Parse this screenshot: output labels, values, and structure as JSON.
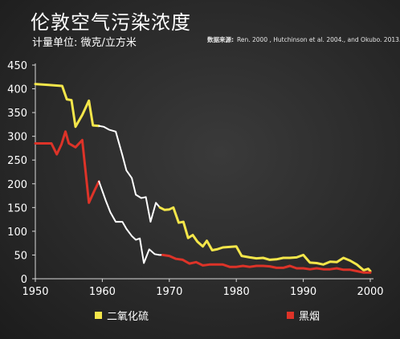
{
  "header": {
    "title": "伦敦空气污染浓度",
    "subtitle": "计量单位: 微克/立方米",
    "source_label": "数据来源:",
    "source_text": "Ren. 2000 , Hutchinson et al. 2004., and Okubo. 2013."
  },
  "colors": {
    "so2": "#f4e64a",
    "smoke": "#dd3328",
    "smoke_highlight": "#ffffff",
    "axis": "#d9d9d9",
    "tick_label": "#ffffff"
  },
  "legend": {
    "so2_label": "二氧化硫",
    "smoke_label": "黑烟"
  },
  "chart_data": {
    "type": "line",
    "title": "伦敦空气污染浓度",
    "ylabel": "计量单位: 微克/立方米",
    "xlabel": "",
    "xlim": [
      1950,
      2000
    ],
    "ylim": [
      0,
      450
    ],
    "x_ticks": [
      1950,
      1960,
      1970,
      1980,
      1990,
      2000
    ],
    "y_ticks": [
      0,
      50,
      100,
      150,
      200,
      250,
      300,
      350,
      400,
      450
    ],
    "grid": false,
    "legend_position": "bottom",
    "series": [
      {
        "name": "二氧化硫",
        "color": "#f4e64a",
        "highlight_range": [
          1959.5,
          1969
        ],
        "highlight_color": "#ffffff",
        "points": [
          [
            1950,
            410
          ],
          [
            1952,
            408
          ],
          [
            1953,
            407
          ],
          [
            1954,
            406
          ],
          [
            1954.7,
            378
          ],
          [
            1955.4,
            376
          ],
          [
            1956,
            320
          ],
          [
            1957,
            345
          ],
          [
            1958,
            375
          ],
          [
            1958.6,
            323
          ],
          [
            1959.5,
            322
          ],
          [
            1960.2,
            320
          ],
          [
            1961,
            314
          ],
          [
            1962,
            310
          ],
          [
            1963,
            260
          ],
          [
            1963.6,
            228
          ],
          [
            1964.4,
            212
          ],
          [
            1965,
            177
          ],
          [
            1965.8,
            170
          ],
          [
            1966.5,
            172
          ],
          [
            1967.2,
            120
          ],
          [
            1968,
            160
          ],
          [
            1968.6,
            150
          ],
          [
            1969.3,
            145
          ],
          [
            1970,
            146
          ],
          [
            1970.6,
            150
          ],
          [
            1971.4,
            118
          ],
          [
            1972.1,
            120
          ],
          [
            1972.8,
            86
          ],
          [
            1973.5,
            92
          ],
          [
            1974.2,
            78
          ],
          [
            1975,
            68
          ],
          [
            1975.6,
            80
          ],
          [
            1976.4,
            60
          ],
          [
            1977.1,
            62
          ],
          [
            1978,
            66
          ],
          [
            1979,
            67
          ],
          [
            1980,
            68
          ],
          [
            1980.8,
            48
          ],
          [
            1982,
            45
          ],
          [
            1983,
            43
          ],
          [
            1984,
            44
          ],
          [
            1985,
            40
          ],
          [
            1986,
            41
          ],
          [
            1987,
            44
          ],
          [
            1988,
            44
          ],
          [
            1989,
            45
          ],
          [
            1990,
            50
          ],
          [
            1991,
            34
          ],
          [
            1992,
            33
          ],
          [
            1993,
            30
          ],
          [
            1994,
            36
          ],
          [
            1995,
            35
          ],
          [
            1996,
            44
          ],
          [
            1997,
            38
          ],
          [
            1998,
            30
          ],
          [
            1999,
            18
          ],
          [
            1999.7,
            21
          ],
          [
            2000,
            16
          ]
        ]
      },
      {
        "name": "黑烟",
        "color": "#dd3328",
        "highlight_range": [
          1959.5,
          1969.8
        ],
        "highlight_color": "#ffffff",
        "points": [
          [
            1950,
            285
          ],
          [
            1951,
            285
          ],
          [
            1952.4,
            285
          ],
          [
            1953.2,
            262
          ],
          [
            1953.9,
            283
          ],
          [
            1954.5,
            310
          ],
          [
            1955,
            285
          ],
          [
            1956,
            277
          ],
          [
            1957,
            292
          ],
          [
            1958,
            160
          ],
          [
            1958.8,
            185
          ],
          [
            1959.5,
            205
          ],
          [
            1960.5,
            165
          ],
          [
            1961.2,
            140
          ],
          [
            1962,
            120
          ],
          [
            1963,
            120
          ],
          [
            1963.6,
            105
          ],
          [
            1964.4,
            90
          ],
          [
            1965,
            82
          ],
          [
            1965.6,
            85
          ],
          [
            1966.2,
            33
          ],
          [
            1967,
            62
          ],
          [
            1967.8,
            52
          ],
          [
            1968.5,
            50
          ],
          [
            1969,
            50
          ],
          [
            1970,
            48
          ],
          [
            1971,
            42
          ],
          [
            1972,
            40
          ],
          [
            1973,
            32
          ],
          [
            1974,
            35
          ],
          [
            1975,
            28
          ],
          [
            1976,
            30
          ],
          [
            1977,
            30
          ],
          [
            1978,
            30
          ],
          [
            1979,
            25
          ],
          [
            1980,
            25
          ],
          [
            1981,
            27
          ],
          [
            1982,
            25
          ],
          [
            1983,
            27
          ],
          [
            1984,
            27
          ],
          [
            1985,
            26
          ],
          [
            1986,
            23
          ],
          [
            1987,
            23
          ],
          [
            1988,
            27
          ],
          [
            1989,
            22
          ],
          [
            1990,
            22
          ],
          [
            1991,
            20
          ],
          [
            1992,
            22
          ],
          [
            1993,
            20
          ],
          [
            1994,
            20
          ],
          [
            1995,
            22
          ],
          [
            1996,
            19
          ],
          [
            1997,
            19
          ],
          [
            1998,
            16
          ],
          [
            1999,
            13
          ],
          [
            2000,
            13
          ]
        ]
      }
    ]
  }
}
